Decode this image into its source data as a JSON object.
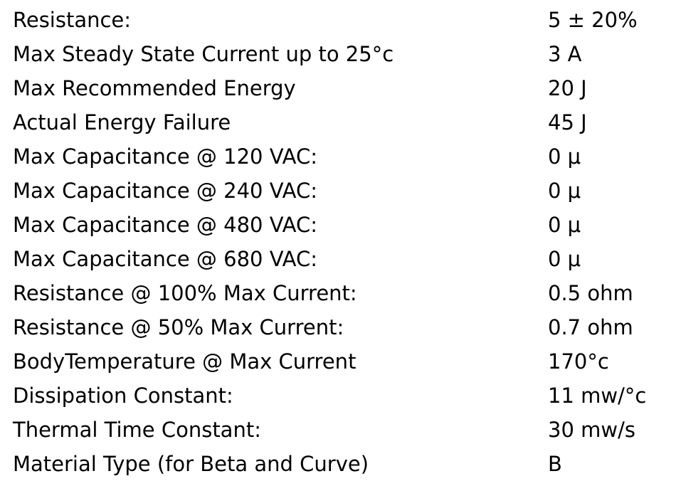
{
  "table": {
    "rows": [
      [
        "Resistance:",
        "5 ± 20%"
      ],
      [
        "Max Steady State Current up to 25°c",
        "3 A"
      ],
      [
        "Max Recommended Energy",
        "20 J"
      ],
      [
        "Actual Energy Failure",
        "45 J"
      ],
      [
        "Max Capacitance @ 120 VAC:",
        "0 μ"
      ],
      [
        "Max Capacitance @ 240 VAC:",
        "0 μ"
      ],
      [
        "Max Capacitance @ 480 VAC:",
        "0 μ"
      ],
      [
        "Max Capacitance @ 680 VAC:",
        "0 μ"
      ],
      [
        "Resistance @ 100% Max Current:",
        "0.5 ohm"
      ],
      [
        "Resistance @ 50% Max Current:",
        "0.7 ohm"
      ],
      [
        "BodyTemperature @ Max Current",
        "170°c"
      ],
      [
        "Dissipation Constant:",
        "11 mw/°c"
      ],
      [
        "Thermal Time Constant:",
        "30 mw/s"
      ],
      [
        "Material Type (for Beta and Curve)",
        "B"
      ]
    ]
  }
}
